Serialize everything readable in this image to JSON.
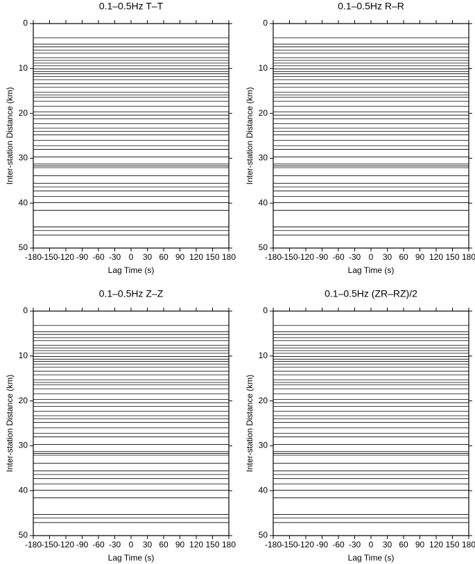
{
  "chart_data": [
    {
      "type": "record-section",
      "title": "0.1–0.5Hz T–T",
      "xlabel": "Lag Time (s)",
      "ylabel": "Inter-station Distance (km)",
      "xlim": [
        -180,
        180
      ],
      "xticks": [
        -180,
        -150,
        -120,
        -90,
        -60,
        -30,
        0,
        30,
        60,
        90,
        120,
        150,
        180
      ],
      "ylim": [
        0,
        50
      ],
      "yticks": [
        0,
        10,
        20,
        30,
        40,
        50
      ],
      "y_inverted": true,
      "color": "#000000",
      "traces": [
        3.2,
        4.6,
        5.2,
        5.9,
        6.6,
        7.6,
        8.2,
        8.8,
        9.4,
        10.1,
        10.7,
        11.2,
        11.8,
        12.5,
        13.4,
        14.2,
        15.3,
        15.9,
        16.4,
        17.3,
        18.4,
        19.7,
        20.4,
        21.2,
        22.3,
        23.3,
        24.0,
        24.8,
        26.0,
        27.2,
        28.0,
        29.7,
        31.3,
        31.7,
        32.1,
        33.9,
        35.6,
        36.4,
        37.3,
        38.5,
        39.9,
        41.6,
        45.3,
        46.1,
        47.1
      ]
    },
    {
      "type": "record-section",
      "title": "0.1–0.5Hz R–R",
      "xlabel": "Lag Time (s)",
      "ylabel": "Inter-station Distance (km)",
      "xlim": [
        -180,
        180
      ],
      "xticks": [
        -180,
        -150,
        -120,
        -90,
        -60,
        -30,
        0,
        30,
        60,
        90,
        120,
        150,
        180
      ],
      "ylim": [
        0,
        50
      ],
      "yticks": [
        0,
        10,
        20,
        30,
        40,
        50
      ],
      "y_inverted": true,
      "color": "#000000",
      "traces": [
        3.2,
        4.6,
        5.2,
        5.9,
        6.6,
        7.6,
        8.2,
        8.8,
        9.4,
        10.1,
        10.7,
        11.2,
        11.8,
        12.5,
        13.4,
        14.2,
        15.3,
        15.9,
        16.4,
        17.3,
        18.4,
        19.7,
        20.4,
        21.2,
        22.3,
        23.3,
        24.0,
        24.8,
        26.0,
        27.2,
        28.0,
        29.7,
        31.3,
        31.7,
        32.1,
        33.9,
        35.6,
        36.4,
        37.3,
        38.5,
        39.9,
        41.6,
        45.3,
        46.1,
        47.1
      ]
    },
    {
      "type": "record-section",
      "title": "0.1–0.5Hz Z–Z",
      "xlabel": "Lag Time (s)",
      "ylabel": "Inter-station Distance (km)",
      "xlim": [
        -180,
        180
      ],
      "xticks": [
        -180,
        -150,
        -120,
        -90,
        -60,
        -30,
        0,
        30,
        60,
        90,
        120,
        150,
        180
      ],
      "ylim": [
        0,
        50
      ],
      "yticks": [
        0,
        10,
        20,
        30,
        40,
        50
      ],
      "y_inverted": true,
      "color": "#000000",
      "traces": [
        3.2,
        4.6,
        5.2,
        5.9,
        6.6,
        7.6,
        8.2,
        8.8,
        9.4,
        10.1,
        10.7,
        11.2,
        11.8,
        12.5,
        13.4,
        14.2,
        15.3,
        15.9,
        16.4,
        17.3,
        18.4,
        19.7,
        20.4,
        21.2,
        22.3,
        23.3,
        24.0,
        24.8,
        26.0,
        27.2,
        28.0,
        29.7,
        31.3,
        31.7,
        32.1,
        33.9,
        35.6,
        36.4,
        37.3,
        38.5,
        39.9,
        41.6,
        45.3,
        46.1,
        47.1
      ]
    },
    {
      "type": "record-section",
      "title": "0.1–0.5Hz (ZR–RZ)/2",
      "xlabel": "Lag Time (s)",
      "ylabel": "Inter-station Distance (km)",
      "xlim": [
        -180,
        180
      ],
      "xticks": [
        -180,
        -150,
        -120,
        -90,
        -60,
        -30,
        0,
        30,
        60,
        90,
        120,
        150,
        180
      ],
      "ylim": [
        0,
        50
      ],
      "yticks": [
        0,
        10,
        20,
        30,
        40,
        50
      ],
      "y_inverted": true,
      "color": "#000000",
      "traces": [
        3.2,
        4.6,
        5.2,
        5.9,
        6.6,
        7.6,
        8.2,
        8.8,
        9.4,
        10.1,
        10.7,
        11.2,
        11.8,
        12.5,
        13.4,
        14.2,
        15.3,
        15.9,
        16.4,
        17.3,
        18.4,
        19.7,
        20.4,
        21.2,
        22.3,
        23.3,
        24.0,
        24.8,
        26.0,
        27.2,
        28.0,
        29.7,
        31.3,
        31.7,
        32.1,
        33.9,
        35.6,
        36.4,
        37.3,
        38.5,
        39.9,
        41.6,
        45.3,
        46.1,
        47.1
      ]
    }
  ]
}
